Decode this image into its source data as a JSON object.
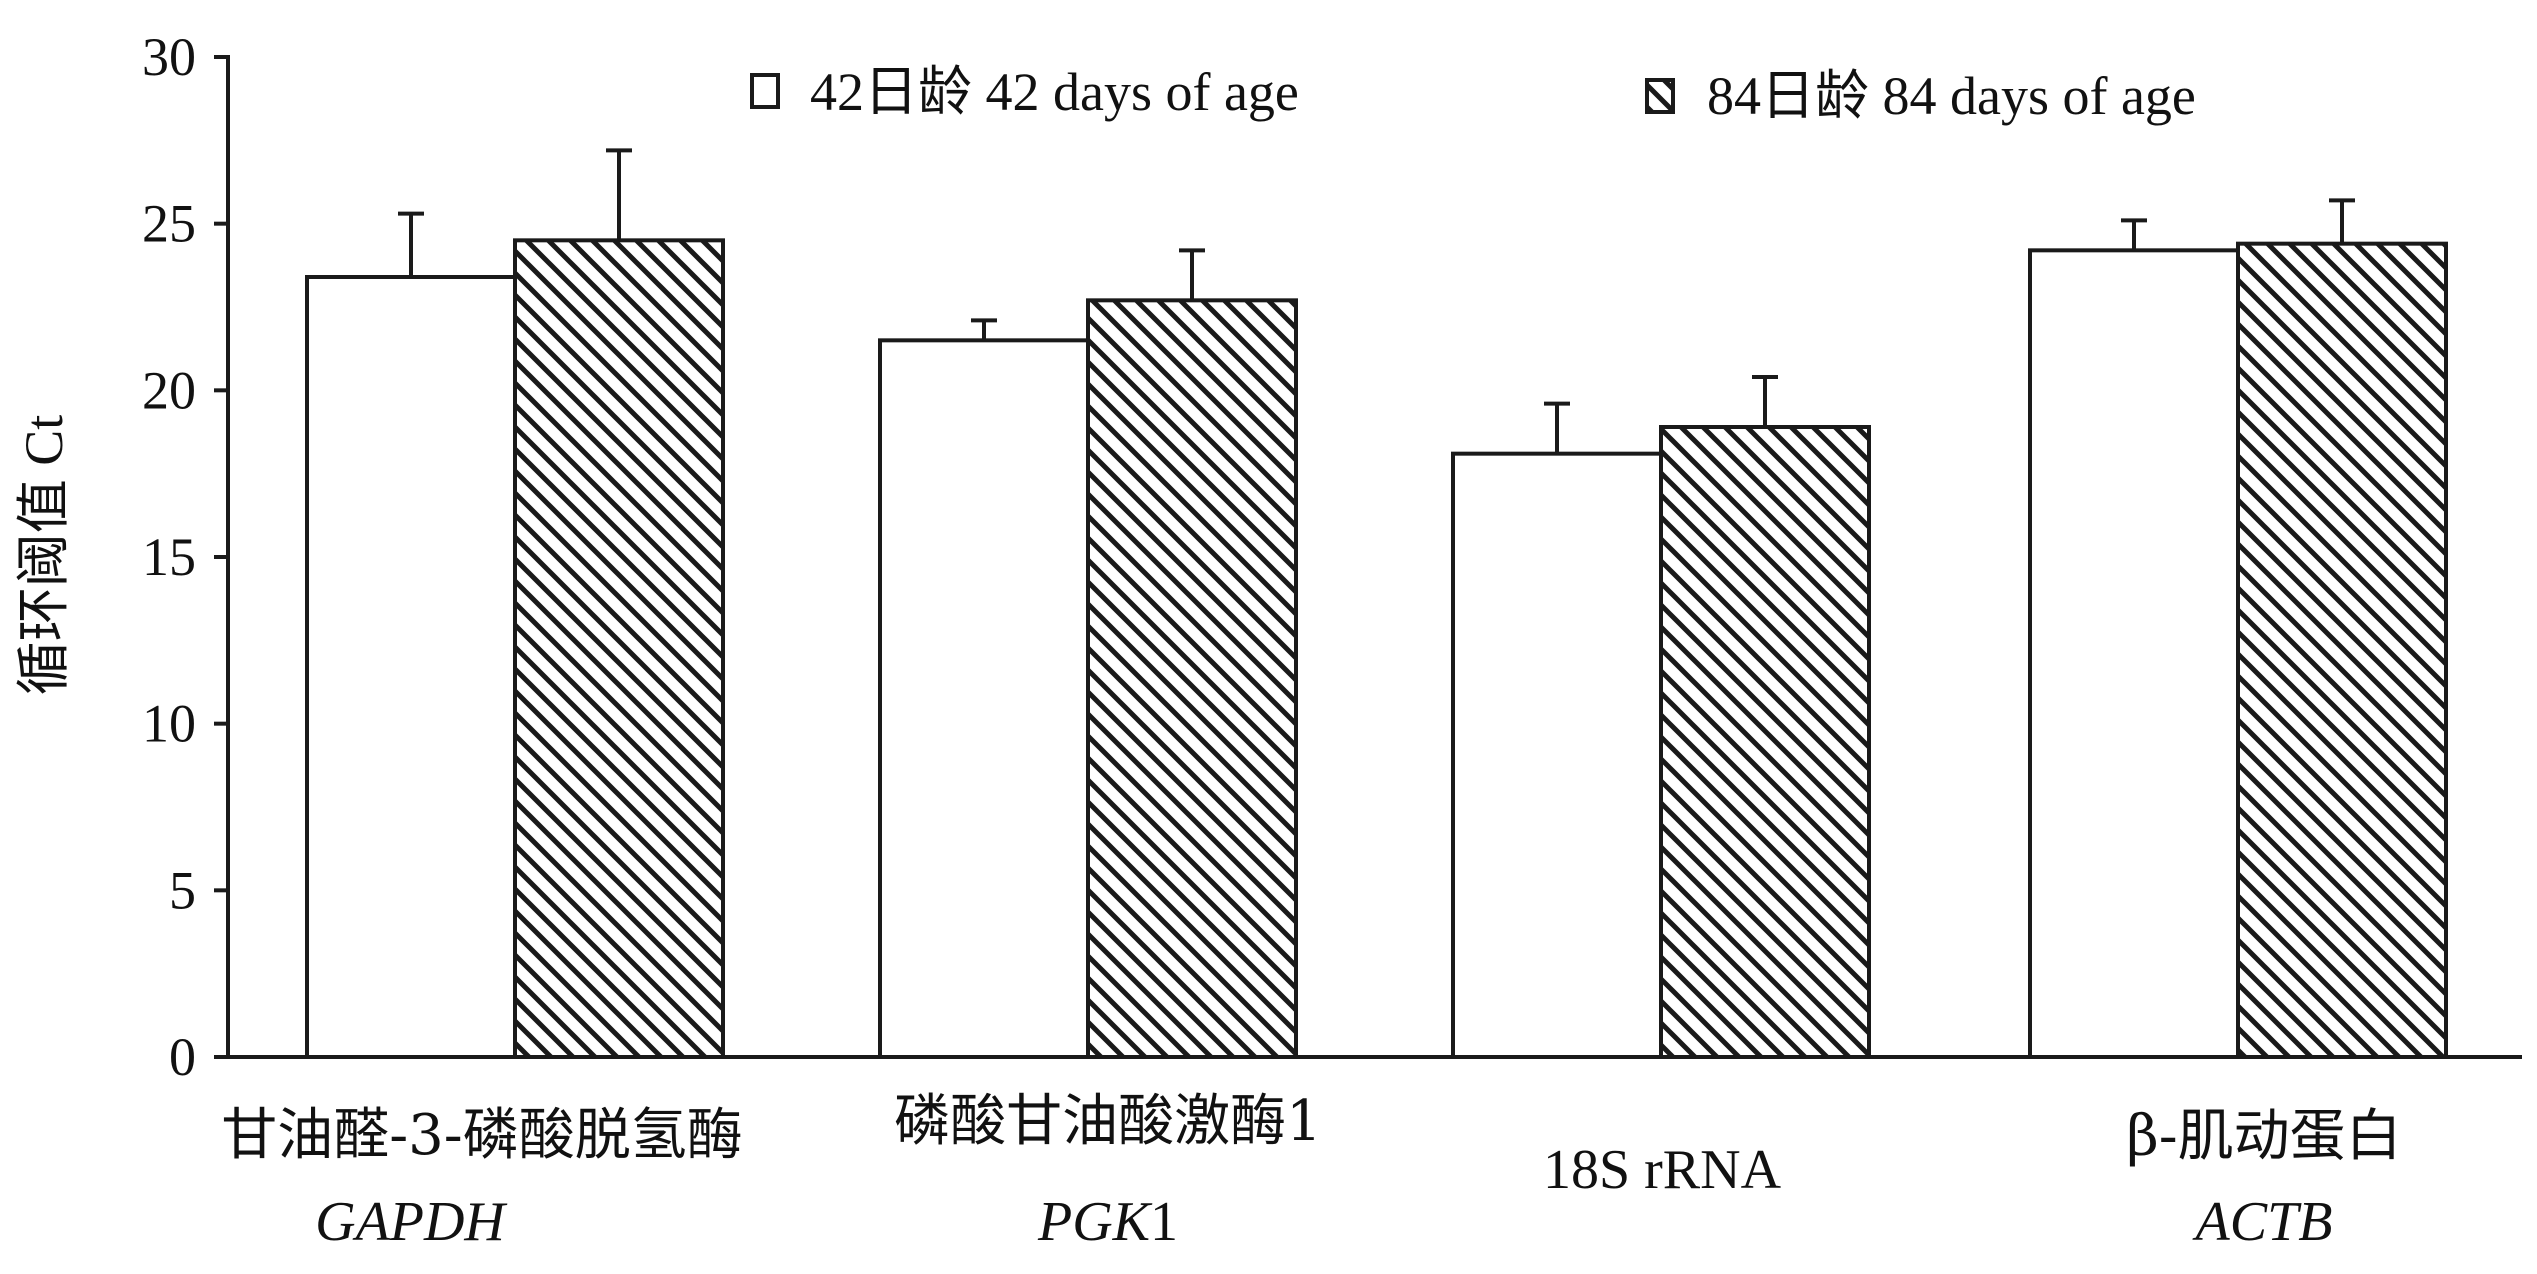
{
  "chart_data": {
    "type": "bar",
    "ylabel": "循环阈值 Ct",
    "ylim": [
      0,
      30
    ],
    "yticks": [
      0,
      5,
      10,
      15,
      20,
      25,
      30
    ],
    "grid": false,
    "legend_position": "top",
    "categories": [
      {
        "cn": "甘油醛-3-磷酸脱氢酶",
        "en": "GAPDH",
        "en_italic": true
      },
      {
        "cn": "磷酸甘油酸激酶1",
        "en": "PGK1",
        "en_italic": true
      },
      {
        "cn": "",
        "en": "18S rRNA",
        "en_italic": false
      },
      {
        "cn": "β-肌动蛋白",
        "en": "ACTB",
        "en_italic": true
      }
    ],
    "series": [
      {
        "name": "42日龄 42 days of age",
        "pattern": "open",
        "values": [
          23.4,
          21.5,
          18.1,
          24.2
        ],
        "errors": [
          1.9,
          0.6,
          1.5,
          0.9
        ]
      },
      {
        "name": "84日龄 84 days of age",
        "pattern": "hatched",
        "values": [
          24.5,
          22.7,
          18.9,
          24.4
        ],
        "errors": [
          2.7,
          1.5,
          1.5,
          1.3
        ]
      }
    ],
    "colors": {
      "ink": "#1a1a1a",
      "fill_open": "#ffffff",
      "hatch": "#1a1a1a"
    }
  }
}
